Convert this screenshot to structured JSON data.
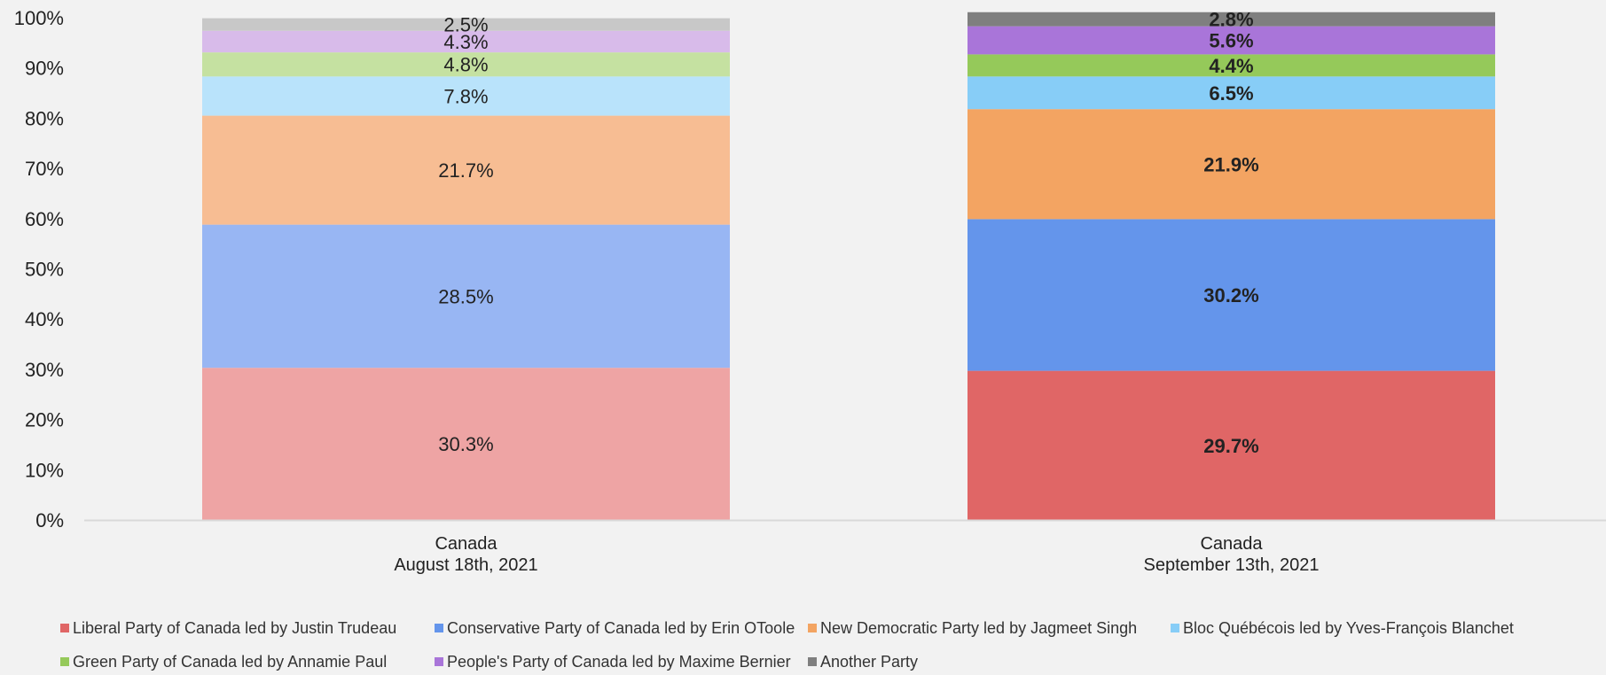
{
  "chart_data": {
    "type": "bar",
    "stacked": true,
    "percent": true,
    "categories": [
      "Canada\nAugust 18th, 2021",
      "Canada\nSeptember 13th, 2021"
    ],
    "ylim": [
      0,
      100
    ],
    "yticks": [
      "0%",
      "10%",
      "20%",
      "30%",
      "40%",
      "50%",
      "60%",
      "70%",
      "80%",
      "90%",
      "100%"
    ],
    "legend_position": "bottom",
    "grid": false,
    "series": [
      {
        "name": "Liberal Party of Canada led by Justin Trudeau",
        "values": [
          30.3,
          29.7
        ],
        "labels": [
          "30.3%",
          "29.7%"
        ],
        "colors": [
          "#eea4a4",
          "#e06666"
        ]
      },
      {
        "name": "Conservative Party of Canada led by Erin OToole",
        "values": [
          28.5,
          30.2
        ],
        "labels": [
          "28.5%",
          "30.2%"
        ],
        "colors": [
          "#98b6f3",
          "#6495eb"
        ]
      },
      {
        "name": "New Democratic Party led by Jagmeet Singh",
        "values": [
          21.7,
          21.9
        ],
        "labels": [
          "21.7%",
          "21.9%"
        ],
        "colors": [
          "#f7bd93",
          "#f3a462"
        ]
      },
      {
        "name": "Bloc Québécois led by Yves-François Blanchet",
        "values": [
          7.8,
          6.5
        ],
        "labels": [
          "7.8%",
          "6.5%"
        ],
        "colors": [
          "#b9e3fb",
          "#87cdf7"
        ]
      },
      {
        "name": "Green Party of Canada led by Annamie Paul",
        "values": [
          4.8,
          4.4
        ],
        "labels": [
          "4.8%",
          "4.4%"
        ],
        "colors": [
          "#c5e1a1",
          "#95c95a"
        ]
      },
      {
        "name": "People's Party of Canada led by Maxime Bernier",
        "values": [
          4.3,
          5.6
        ],
        "labels": [
          "4.3%",
          "5.6%"
        ],
        "colors": [
          "#d8bbea",
          "#a975d9"
        ]
      },
      {
        "name": "Another Party",
        "values": [
          2.5,
          2.8
        ],
        "labels": [
          "2.5%",
          "2.8%"
        ],
        "colors": [
          "#c8c8c8",
          "#7f7f7f"
        ]
      }
    ]
  }
}
